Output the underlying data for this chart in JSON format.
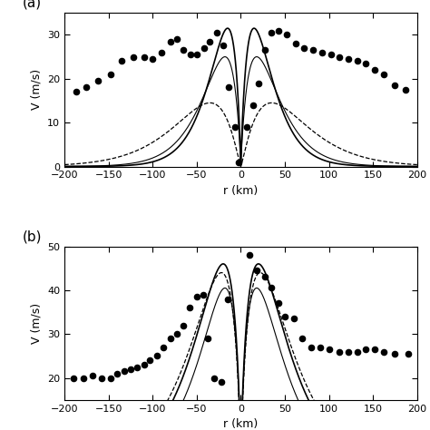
{
  "panel_a": {
    "ylabel": "V (m/s)",
    "xlabel": "r (km)",
    "xlim": [
      -200,
      200
    ],
    "ylim": [
      0,
      35
    ],
    "yticks": [
      0,
      10,
      20,
      30
    ],
    "xticks": [
      -200,
      -150,
      -100,
      -50,
      0,
      50,
      100,
      150,
      200
    ],
    "curves": [
      {
        "Vmax": 31.5,
        "Rm": 15.0,
        "n": 0.9,
        "style": "solid",
        "lw": 1.2
      },
      {
        "Vmax": 25.0,
        "Rm": 18.0,
        "n": 0.9,
        "style": "solid",
        "lw": 0.8
      },
      {
        "Vmax": 14.5,
        "Rm": 35.0,
        "n": 1.2,
        "style": "dashed",
        "lw": 0.9
      }
    ],
    "dots_r": [
      -187,
      -175,
      -162,
      -148,
      -135,
      -122,
      -110,
      -100,
      -90,
      -80,
      -72,
      -65,
      -57,
      -50,
      -42,
      -35,
      -27,
      -20,
      -14,
      -7,
      -2,
      7,
      14,
      20,
      27,
      35,
      43,
      52,
      62,
      72,
      82,
      92,
      102,
      112,
      122,
      132,
      142,
      152,
      162,
      175,
      187
    ],
    "dots_v": [
      17.0,
      18.0,
      19.5,
      21.0,
      24.0,
      25.0,
      25.0,
      24.5,
      26.0,
      28.5,
      29.0,
      26.5,
      25.5,
      25.5,
      27.0,
      28.5,
      30.5,
      27.5,
      18.0,
      9.0,
      1.0,
      9.0,
      14.0,
      19.0,
      26.5,
      30.5,
      31.0,
      30.0,
      28.0,
      27.0,
      26.5,
      26.0,
      25.5,
      25.0,
      24.5,
      24.0,
      23.5,
      22.0,
      21.0,
      18.5,
      17.5
    ]
  },
  "panel_b": {
    "ylabel": "V (m/s)",
    "xlabel": "r (km)",
    "xlim": [
      -200,
      200
    ],
    "ylim": [
      15,
      50
    ],
    "yticks": [
      20,
      30,
      40,
      50
    ],
    "xticks": [
      -200,
      -150,
      -100,
      -50,
      0,
      50,
      100,
      150,
      200
    ],
    "curves": [
      {
        "Vmax": 46.0,
        "Rm": 20.0,
        "n": 0.75,
        "style": "solid",
        "lw": 1.2
      },
      {
        "Vmax": 40.5,
        "Rm": 18.0,
        "n": 0.75,
        "style": "solid",
        "lw": 0.8
      },
      {
        "Vmax": 44.0,
        "Rm": 22.0,
        "n": 0.75,
        "style": "dashed",
        "lw": 0.9
      }
    ],
    "dots_r": [
      -190,
      -178,
      -168,
      -158,
      -148,
      -140,
      -132,
      -125,
      -118,
      -110,
      -103,
      -95,
      -88,
      -80,
      -73,
      -65,
      -58,
      -50,
      -43,
      -37,
      -30,
      -22,
      -15,
      10,
      18,
      27,
      35,
      43,
      50,
      60,
      70,
      80,
      90,
      100,
      112,
      122,
      132,
      142,
      152,
      162,
      175,
      190
    ],
    "dots_v": [
      20.0,
      20.0,
      20.5,
      20.0,
      20.0,
      21.0,
      21.5,
      22.0,
      22.5,
      23.0,
      24.0,
      25.0,
      27.0,
      29.0,
      30.0,
      32.0,
      36.0,
      38.5,
      39.0,
      29.0,
      20.0,
      19.0,
      38.0,
      48.0,
      44.5,
      43.0,
      40.5,
      37.0,
      34.0,
      33.5,
      29.0,
      27.0,
      27.0,
      26.5,
      26.0,
      26.0,
      26.0,
      26.5,
      26.5,
      26.0,
      25.5,
      25.5
    ]
  }
}
